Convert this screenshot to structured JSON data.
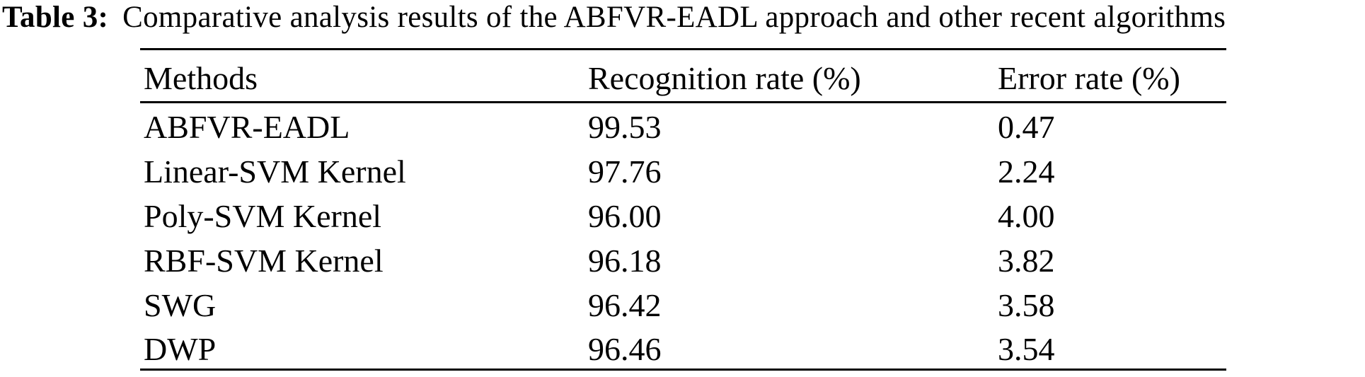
{
  "caption": {
    "label": "Table 3:",
    "text": "Comparative analysis results of the ABFVR-EADL approach and other recent algorithms"
  },
  "table": {
    "columns": [
      "Methods",
      "Recognition rate (%)",
      "Error rate (%)"
    ],
    "rows": [
      {
        "method": "ABFVR-EADL",
        "recognition_rate": "99.53",
        "error_rate": "0.47"
      },
      {
        "method": "Linear-SVM Kernel",
        "recognition_rate": "97.76",
        "error_rate": "2.24"
      },
      {
        "method": "Poly-SVM Kernel",
        "recognition_rate": "96.00",
        "error_rate": "4.00"
      },
      {
        "method": "RBF-SVM Kernel",
        "recognition_rate": "96.18",
        "error_rate": "3.82"
      },
      {
        "method": "SWG",
        "recognition_rate": "96.42",
        "error_rate": "3.58"
      },
      {
        "method": "DWP",
        "recognition_rate": "96.46",
        "error_rate": "3.54"
      }
    ]
  },
  "colors": {
    "text": "#000000",
    "background": "#ffffff",
    "rule": "#000000"
  }
}
